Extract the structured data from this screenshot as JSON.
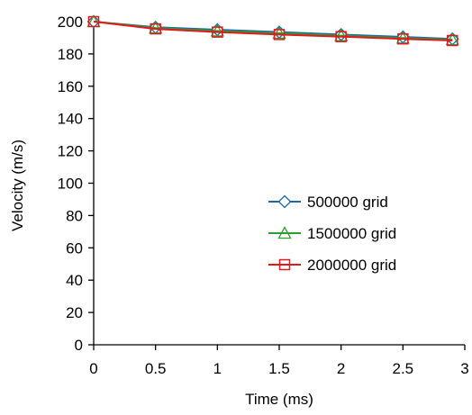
{
  "chart_data": {
    "type": "line",
    "title": "",
    "xlabel": "Time (ms)",
    "ylabel": "Velocity (m/s)",
    "xlim": [
      0,
      3
    ],
    "ylim": [
      0,
      200
    ],
    "x_ticks": [
      "0",
      "0.5",
      "1",
      "1.5",
      "2",
      "2.5",
      "3"
    ],
    "y_ticks": [
      "0",
      "20",
      "40",
      "60",
      "80",
      "100",
      "120",
      "140",
      "160",
      "180",
      "200"
    ],
    "grid": false,
    "legend_position": "right-center",
    "x": [
      0,
      0.5,
      1,
      1.5,
      2,
      2.5,
      2.9
    ],
    "series": [
      {
        "name": "500000 grid",
        "marker": "diamond",
        "color": "#2166ac",
        "values": [
          200,
          196.5,
          195.0,
          193.5,
          192.0,
          190.5,
          189.3
        ]
      },
      {
        "name": "1500000 grid",
        "marker": "triangle",
        "color": "#2ca02c",
        "values": [
          200,
          196.0,
          194.2,
          192.8,
          191.3,
          189.8,
          188.8
        ]
      },
      {
        "name": "2000000 grid",
        "marker": "square",
        "color": "#e31a1c",
        "values": [
          200,
          195.5,
          193.5,
          192.0,
          190.7,
          189.3,
          188.3
        ]
      }
    ]
  }
}
